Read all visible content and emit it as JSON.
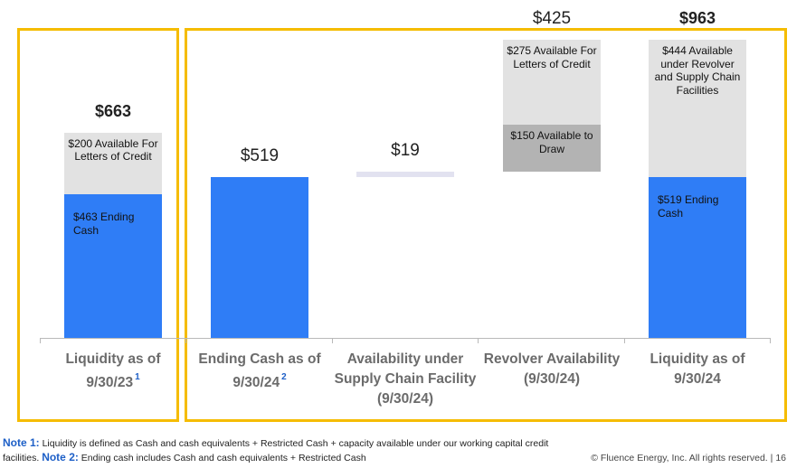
{
  "chart_data": {
    "type": "bar",
    "ylim": [
      0,
      1000
    ],
    "categories": [
      {
        "label": "Liquidity as of 9/30/23",
        "note": "1"
      },
      {
        "label": "Ending Cash as of 9/30/24",
        "note": "2"
      },
      {
        "label": "Availability under Supply Chain Facility (9/30/24)",
        "note": ""
      },
      {
        "label": "Revolver Availability (9/30/24)",
        "note": ""
      },
      {
        "label": "Liquidity as of 9/30/24",
        "note": ""
      }
    ],
    "bars": [
      {
        "total": "$663",
        "total_bold": true,
        "segments": [
          {
            "base": 0,
            "value": 463,
            "color": "#2f7df6",
            "label": "$463 Ending Cash",
            "align": "left"
          },
          {
            "base": 463,
            "value": 200,
            "color": "#e2e2e2",
            "label": "$200 Available For Letters of Credit",
            "align": "center"
          }
        ]
      },
      {
        "total": "$519",
        "total_bold": false,
        "segments": [
          {
            "base": 0,
            "value": 519,
            "color": "#2f7df6",
            "label": "",
            "align": "left"
          }
        ]
      },
      {
        "total": "$19",
        "total_bold": false,
        "segments": [
          {
            "base": 519,
            "value": 19,
            "color": "#e2e2f0",
            "label": "",
            "align": "center"
          }
        ]
      },
      {
        "total": "$425",
        "total_bold": false,
        "segments": [
          {
            "base": 538,
            "value": 150,
            "color": "#b3b3b3",
            "label": "$150 Available to Draw",
            "align": "center"
          },
          {
            "base": 688,
            "value": 275,
            "color": "#e2e2e2",
            "label": "$275 Available For Letters of Credit",
            "align": "center"
          }
        ]
      },
      {
        "total": "$963",
        "total_bold": true,
        "segments": [
          {
            "base": 0,
            "value": 519,
            "color": "#2f7df6",
            "label": "$519 Ending Cash",
            "align": "left"
          },
          {
            "base": 519,
            "value": 444,
            "color": "#e2e2e2",
            "label": "$444 Available under Revolver and Supply Chain Facilities",
            "align": "center"
          }
        ]
      }
    ]
  },
  "notes": {
    "note1_label": "Note 1:",
    "note1_text": "Liquidity is defined  as Cash and cash equivalents + Restricted Cash + capacity available under our working capital credit facilities.",
    "note2_label": "Note 2:",
    "note2_text": "Ending cash includes Cash and cash equivalents + Restricted Cash"
  },
  "footer": {
    "copyright": "© Fluence Energy, Inc. All rights reserved.",
    "page": "16"
  },
  "colors": {
    "frame": "#f5bc00",
    "blue": "#2f7df6",
    "note_label": "#1d5fc7"
  }
}
